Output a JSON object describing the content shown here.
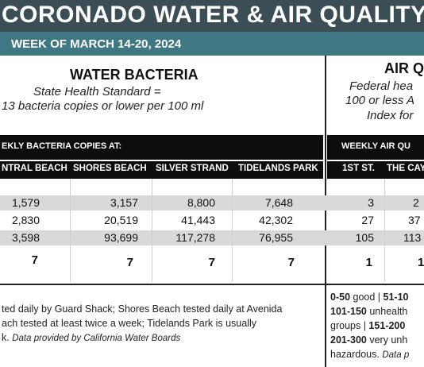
{
  "header": {
    "title": "CORONADO WATER & AIR QUALITY R",
    "subtitle": "WEEK OF MARCH 14-20, 2024"
  },
  "water": {
    "heading": "WATER BACTERIA",
    "standard_line1": "State Health Standard  =",
    "standard_line2": "13 bacteria copies or lower per 100 ml",
    "bar_label": "EKLY BACTERIA COPIES AT:",
    "columns": [
      "NTRAL BEACH",
      "SHORES BEACH",
      "SILVER STRAND",
      "TIDELANDS PARK"
    ],
    "rows": [
      [
        "1,579",
        "3,157",
        "8,800",
        "7,648"
      ],
      [
        "2,830",
        "20,519",
        "41,443",
        "42,302"
      ],
      [
        "3,598",
        "93,699",
        "117,278",
        "76,955"
      ],
      [
        "7",
        "7",
        "7",
        "7"
      ]
    ],
    "footnote_line1": "ted daily by Guard Shack; Shores Beach tested daily at Avenida",
    "footnote_line2": "ach tested at least twice a week; Tidelands Park is usually",
    "footnote_line3": "k.",
    "footnote_source": "Data provided by California Water Boards"
  },
  "air": {
    "heading": "AIR Q",
    "standard_line1": "Federal hea",
    "standard_line2": "100 or less A",
    "standard_line3": "Index for",
    "bar_label": "WEEKLY AIR QU",
    "columns": [
      "1ST ST.",
      "THE CAY"
    ],
    "rows": [
      [
        "3",
        "2"
      ],
      [
        "27",
        "37"
      ],
      [
        "105",
        "113"
      ],
      [
        "1",
        "1"
      ]
    ],
    "legend_line1_a": "0-50",
    "legend_line1_b": " good | ",
    "legend_line1_c": "51-10",
    "legend_line2_a": "101-150",
    "legend_line2_b": " unhealth",
    "legend_line3_a": "groups | ",
    "legend_line3_b": "151-200",
    "legend_line4_a": "201-300",
    "legend_line4_b": " very unh",
    "legend_line5_a": "hazardous. ",
    "legend_line5_b": "Data p"
  }
}
